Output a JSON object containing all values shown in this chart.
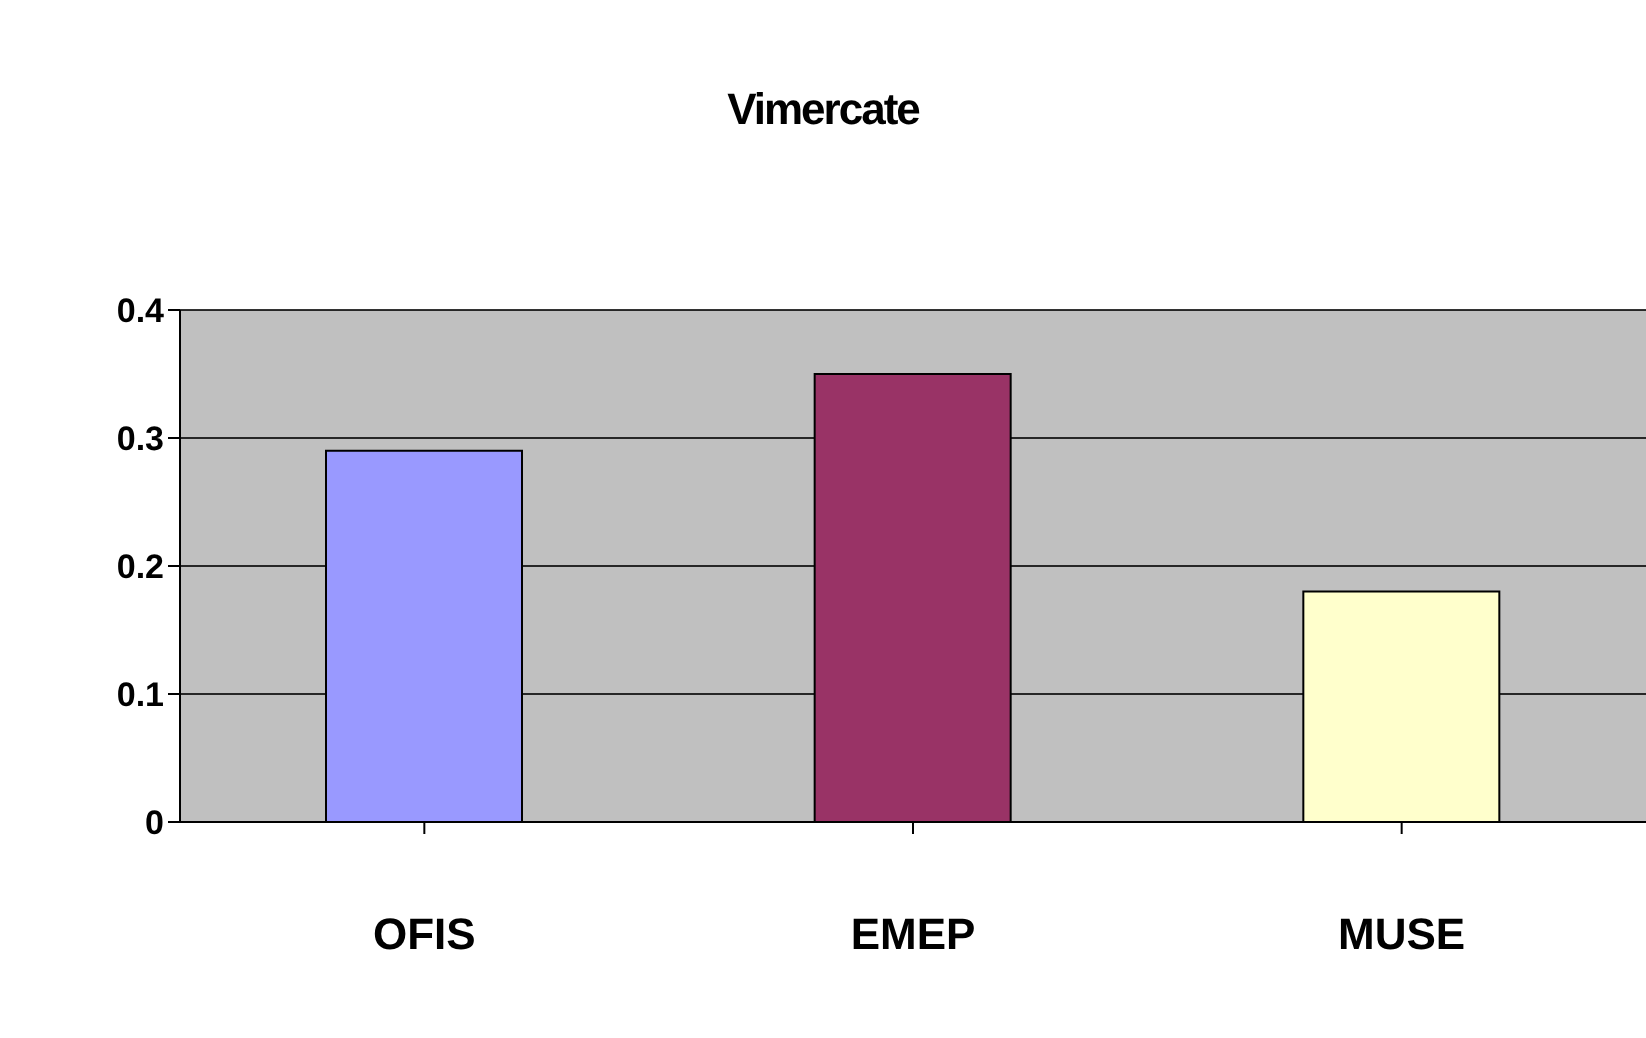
{
  "chart_data": {
    "type": "bar",
    "title": "Vimercate",
    "categories": [
      "OFIS",
      "EMEP",
      "MUSE"
    ],
    "values": [
      0.29,
      0.35,
      0.18
    ],
    "colors": [
      "#9999ff",
      "#993366",
      "#ffffcc"
    ],
    "ylim": [
      0,
      0.4
    ],
    "yticks": [
      0,
      0.1,
      0.2,
      0.3,
      0.4
    ],
    "grid": "y"
  }
}
